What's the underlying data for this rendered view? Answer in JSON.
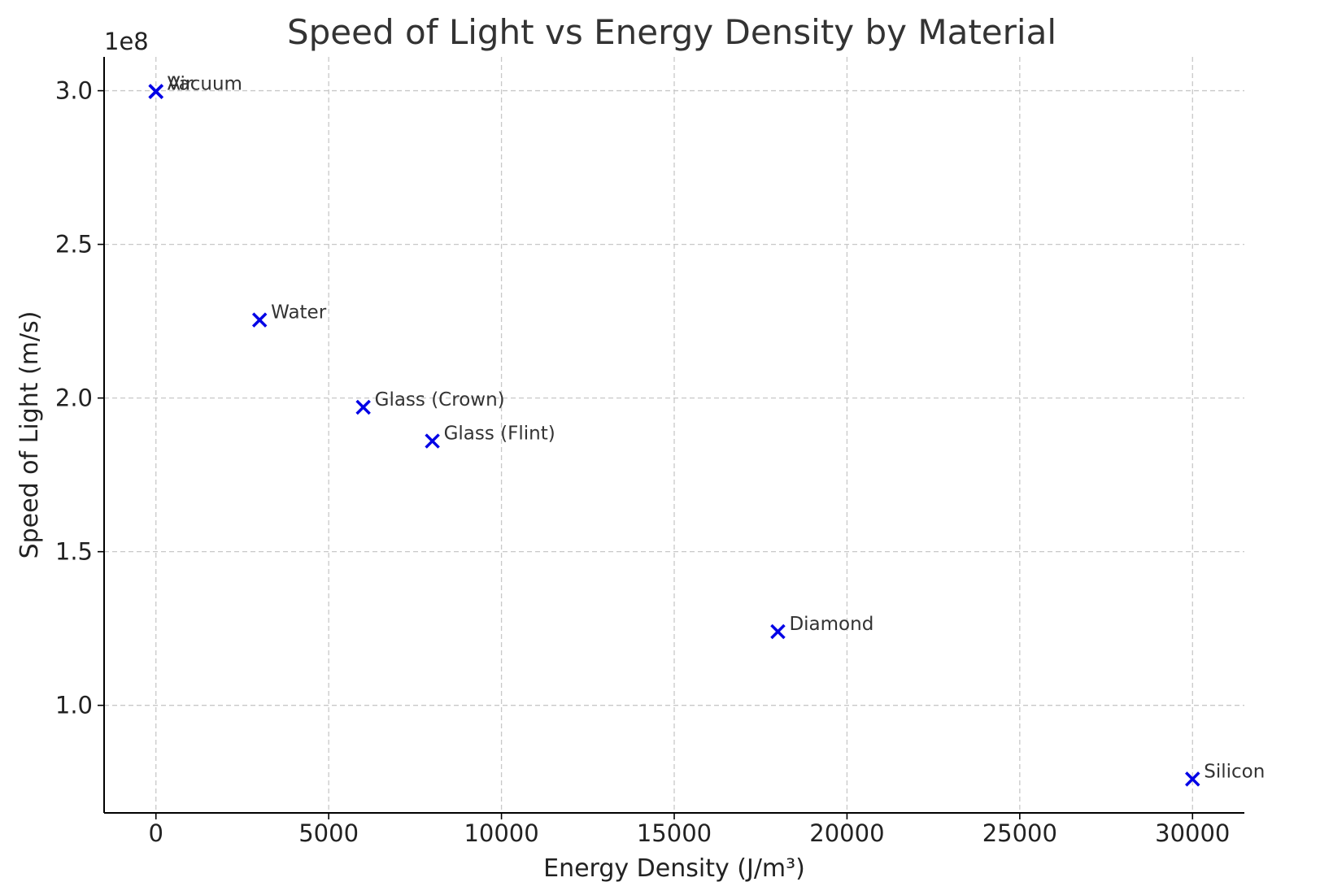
{
  "chart_data": {
    "type": "scatter",
    "title": "Speed of Light vs Energy Density by Material",
    "xlabel": "Energy Density (J/m³)",
    "ylabel": "Speed of Light (m/s)",
    "y_offset_label": "1e8",
    "xlim": [
      -1500,
      31500
    ],
    "ylim": [
      65000000,
      311000000
    ],
    "x_ticks": [
      0,
      5000,
      10000,
      15000,
      20000,
      25000,
      30000
    ],
    "x_tick_labels": [
      "0",
      "5000",
      "10000",
      "15000",
      "20000",
      "25000",
      "30000"
    ],
    "y_ticks": [
      100000000,
      150000000,
      200000000,
      250000000,
      300000000
    ],
    "y_tick_labels": [
      "1.0",
      "1.5",
      "2.0",
      "2.5",
      "3.0"
    ],
    "grid": true,
    "marker": "x",
    "color": "#0000e6",
    "points": [
      {
        "label": "Vacuum",
        "x": 0,
        "y": 299792458
      },
      {
        "label": "Air",
        "x": 0,
        "y": 299700000
      },
      {
        "label": "Water",
        "x": 3000,
        "y": 225400000
      },
      {
        "label": "Glass (Crown)",
        "x": 6000,
        "y": 197000000
      },
      {
        "label": "Glass (Flint)",
        "x": 8000,
        "y": 186000000
      },
      {
        "label": "Diamond",
        "x": 18000,
        "y": 124000000
      },
      {
        "label": "Silicon",
        "x": 30000,
        "y": 76000000
      }
    ]
  }
}
